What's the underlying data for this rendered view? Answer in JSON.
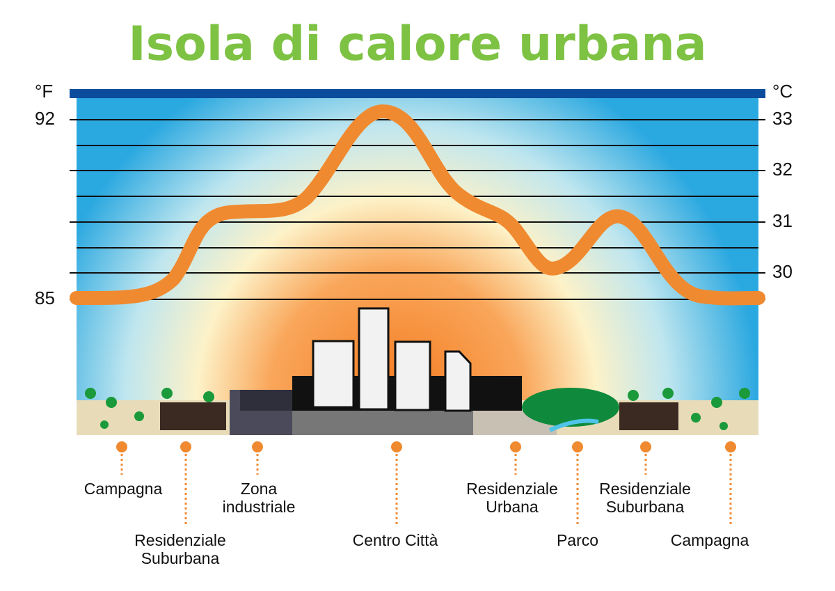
{
  "title": "Isola di calore urbana",
  "left_axis": {
    "unit": "°F",
    "ticks": [
      92,
      85
    ]
  },
  "right_axis": {
    "unit": "°C",
    "ticks": [
      33,
      32,
      31,
      30
    ]
  },
  "zones": [
    {
      "lines": [
        "Campagna"
      ]
    },
    {
      "lines": [
        "Residenziale",
        "Suburbana"
      ]
    },
    {
      "lines": [
        "Zona",
        "industriale"
      ]
    },
    {
      "lines": [
        "Centro Città"
      ]
    },
    {
      "lines": [
        "Residenziale",
        "Urbana"
      ]
    },
    {
      "lines": [
        "Parco"
      ]
    },
    {
      "lines": [
        "Residenziale",
        "Suburbana"
      ]
    },
    {
      "lines": [
        "Campagna"
      ]
    }
  ]
}
